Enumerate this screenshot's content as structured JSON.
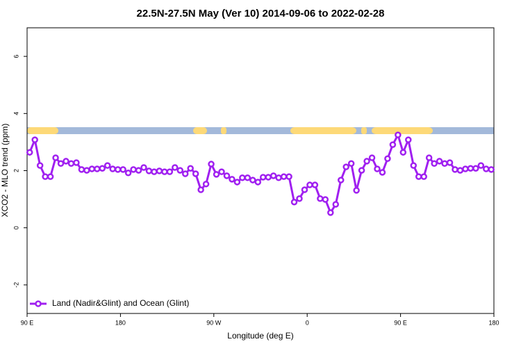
{
  "chart_data": {
    "type": "line",
    "title": "22.5N-27.5N May (Ver 10)   2014-09-06 to 2022-02-28",
    "x_label": "Longitude (deg E)",
    "y_label": "XCO2 - MLO trend (ppm)",
    "xlim": [
      90,
      540
    ],
    "xticks": [
      {
        "value": 90,
        "label": "90 E"
      },
      180,
      {
        "value": 270,
        "label": "90 W"
      },
      {
        "value": 360,
        "label": "0"
      },
      {
        "value": 450,
        "label": "90 E"
      },
      {
        "value": 540,
        "label": "180"
      }
    ],
    "ylim": [
      -3,
      7
    ],
    "yticks": [
      -2,
      0,
      2,
      4,
      6
    ],
    "legend": "bottom-left",
    "x": [
      92.5,
      97.5,
      102.5,
      107.5,
      112.5,
      117.5,
      122.5,
      127.5,
      132.5,
      137.5,
      142.5,
      147.5,
      152.5,
      157.5,
      162.5,
      167.5,
      172.5,
      177.5,
      182.5,
      187.5,
      192.5,
      197.5,
      202.5,
      207.5,
      212.5,
      217.5,
      222.5,
      227.5,
      232.5,
      237.5,
      242.5,
      247.5,
      252.5,
      257.5,
      262.5,
      267.5,
      272.5,
      277.5,
      282.5,
      287.5,
      292.5,
      297.5,
      302.5,
      307.5,
      312.5,
      317.5,
      322.5,
      327.5,
      332.5,
      337.5,
      342.5,
      347.5,
      352.5,
      357.5,
      362.5,
      367.5,
      372.5,
      377.5,
      382.5,
      387.5,
      392.5,
      397.5,
      402.5,
      407.5,
      412.5,
      417.5,
      422.5,
      427.5,
      432.5,
      437.5,
      442.5,
      447.5,
      452.5,
      457.5,
      462.5,
      467.5,
      472.5,
      477.5,
      482.5,
      487.5,
      492.5,
      497.5,
      502.5,
      507.5,
      512.5,
      517.5,
      522.5,
      527.5,
      532.5,
      537.5
    ],
    "series": [
      {
        "name": "Land (Nadir&Glint) and Ocean (Glint)",
        "color": "#a020f0",
        "values": [
          2.64,
          3.08,
          2.18,
          1.79,
          1.79,
          2.45,
          2.25,
          2.33,
          2.25,
          2.28,
          2.04,
          2.01,
          2.06,
          2.06,
          2.08,
          2.18,
          2.06,
          2.04,
          2.04,
          1.92,
          2.04,
          2.01,
          2.11,
          1.99,
          1.96,
          1.99,
          1.96,
          1.96,
          2.11,
          2.01,
          1.89,
          2.08,
          1.89,
          1.33,
          1.53,
          2.23,
          1.87,
          1.96,
          1.82,
          1.7,
          1.6,
          1.75,
          1.75,
          1.67,
          1.6,
          1.77,
          1.77,
          1.82,
          1.75,
          1.79,
          1.79,
          0.9,
          1.02,
          1.33,
          1.5,
          1.5,
          1.02,
          0.99,
          0.53,
          0.82,
          1.67,
          2.13,
          2.25,
          1.31,
          2.01,
          2.33,
          2.45,
          2.06,
          1.94,
          2.42,
          2.91,
          3.25,
          2.64,
          3.08,
          2.18,
          1.79,
          1.79,
          2.45,
          2.25,
          2.33,
          2.25,
          2.28,
          2.04,
          2.01,
          2.06,
          2.08,
          2.08,
          2.18,
          2.06,
          2.04
        ]
      }
    ]
  }
}
